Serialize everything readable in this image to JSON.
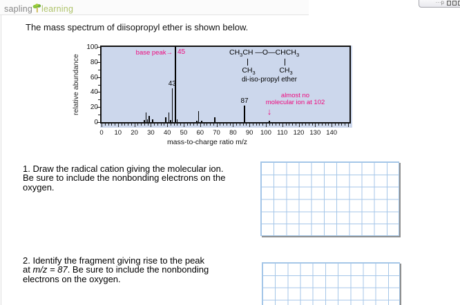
{
  "header": {
    "logo_part1": "sapling",
    "logo_part2": "learning",
    "corner_button_text": "···p",
    "corner_button_squares": 3
  },
  "intro_text": "The mass spectrum of diisopropyl ether is shown below.",
  "chart_data": {
    "type": "bar",
    "kind": "mass-spectrum",
    "title": "",
    "xlabel": "mass-to-charge ratio m/z",
    "ylabel": "relative abundance",
    "xlim": [
      0,
      152
    ],
    "ylim": [
      0,
      100
    ],
    "x_major_ticks": [
      0,
      10,
      20,
      30,
      40,
      50,
      60,
      70,
      80,
      90,
      100,
      110,
      120,
      130,
      140
    ],
    "x_minor_tick_step": 2,
    "y_major_ticks": [
      0,
      20,
      40,
      60,
      80,
      100
    ],
    "y_minor_tick_step": 10,
    "plot_background": "#ccd7ec",
    "peak_color": "#000000",
    "peaks": [
      {
        "mz": 26,
        "intensity": 3
      },
      {
        "mz": 27,
        "intensity": 13
      },
      {
        "mz": 28,
        "intensity": 4
      },
      {
        "mz": 29,
        "intensity": 8
      },
      {
        "mz": 31,
        "intensity": 4
      },
      {
        "mz": 39,
        "intensity": 6
      },
      {
        "mz": 41,
        "intensity": 13
      },
      {
        "mz": 42,
        "intensity": 3
      },
      {
        "mz": 43,
        "intensity": 45
      },
      {
        "mz": 45,
        "intensity": 100
      },
      {
        "mz": 46,
        "intensity": 4
      },
      {
        "mz": 58,
        "intensity": 1.5
      },
      {
        "mz": 59,
        "intensity": 15
      },
      {
        "mz": 61,
        "intensity": 2
      },
      {
        "mz": 69,
        "intensity": 6
      },
      {
        "mz": 87,
        "intensity": 22
      },
      {
        "mz": 102,
        "intensity": 1.5
      }
    ],
    "peak_labels": [
      {
        "mz": 43,
        "intensity": 45,
        "text": "43"
      },
      {
        "mz": 87,
        "intensity": 22,
        "text": "87"
      }
    ],
    "annotations": {
      "accent_color": "#ee0a7e",
      "base_peak_text": "base peak→",
      "base_peak_value": "45",
      "no_molecular_ion_line1": "almost no",
      "no_molecular_ion_line2": "molecular ion at 102",
      "no_molecular_ion_arrow": "↓",
      "structure": {
        "formula": "CH_3CH —O—CHCH_3",
        "left_substituent": "CH_3",
        "right_substituent": "CH_3",
        "name": "di-iso-propyl ether"
      }
    }
  },
  "questions": [
    {
      "lines": [
        "1. Draw the radical cation giving the molecular ion.",
        "Be sure to include the nonbonding electrons on the",
        "oxygen."
      ]
    },
    {
      "line1": "2. Identify the fragment giving rise to the peak",
      "line2_pre": "at ",
      "line2_italic": "m/z = 87",
      "line2_post": ". Be sure to include the nonbonding",
      "line3": "electrons on the oxygen."
    }
  ],
  "canvas": {
    "grid_line_color": "#a4c6e8"
  }
}
